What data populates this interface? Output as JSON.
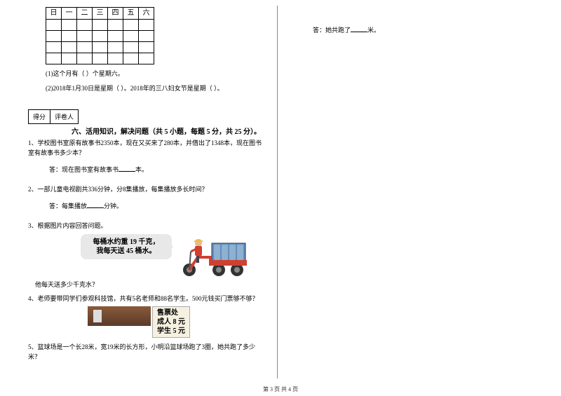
{
  "calendar": {
    "headers": [
      "日",
      "一",
      "二",
      "三",
      "四",
      "五",
      "六"
    ],
    "rows": 4
  },
  "sub_q1": "(1)这个月有（    ）个星期六。",
  "sub_q2": "(2)2018年1月30日是星期（    ）。2018年的三八妇女节是星期（    ）。",
  "score_label1": "得分",
  "score_label2": "评卷人",
  "section6_title": "六、活用知识，解决问题（共 5 小题，每题 5 分，共 25 分）。",
  "p1": "1、学校图书室原有故事书2350本，现在又买来了280本，并借出了1348本，现在图书室有故事书多少本？",
  "p1_ans_prefix": "答：现在图书室有故事书",
  "p1_ans_suffix": "本。",
  "p2": "2、一部儿童电视剧共336分钟，分8集播放，每集播放多长时间？",
  "p2_ans_prefix": "答：每集播放",
  "p2_ans_suffix": "分钟。",
  "p3": "3、根据图片内容回答问题。",
  "bubble_l1": "每桶水约重 19 千克，",
  "bubble_l2": "我每天送 45 桶水。",
  "p3_q": "他每天送多少千克水？",
  "p4": "4、老师要带同学们参观科技馆，共有5名老师和88名学生。500元钱买门票够不够？",
  "ticket_title": "售票处",
  "ticket_adult": "成人 8 元",
  "ticket_student": "学生 5 元",
  "p5": "5、篮球场是一个长28米，宽19米的长方形，小明沿篮球场跑了3圈，她共跑了多少米？",
  "right_ans_prefix": "答：她共跑了",
  "right_ans_suffix": "米。",
  "footer": "第 3 页  共 4 页",
  "colors": {
    "tricycle_red": "#d04030",
    "hat_yellow": "#f0c040",
    "skin": "#e8b890",
    "tire": "#333333",
    "water_blue": "#90b0d0"
  }
}
